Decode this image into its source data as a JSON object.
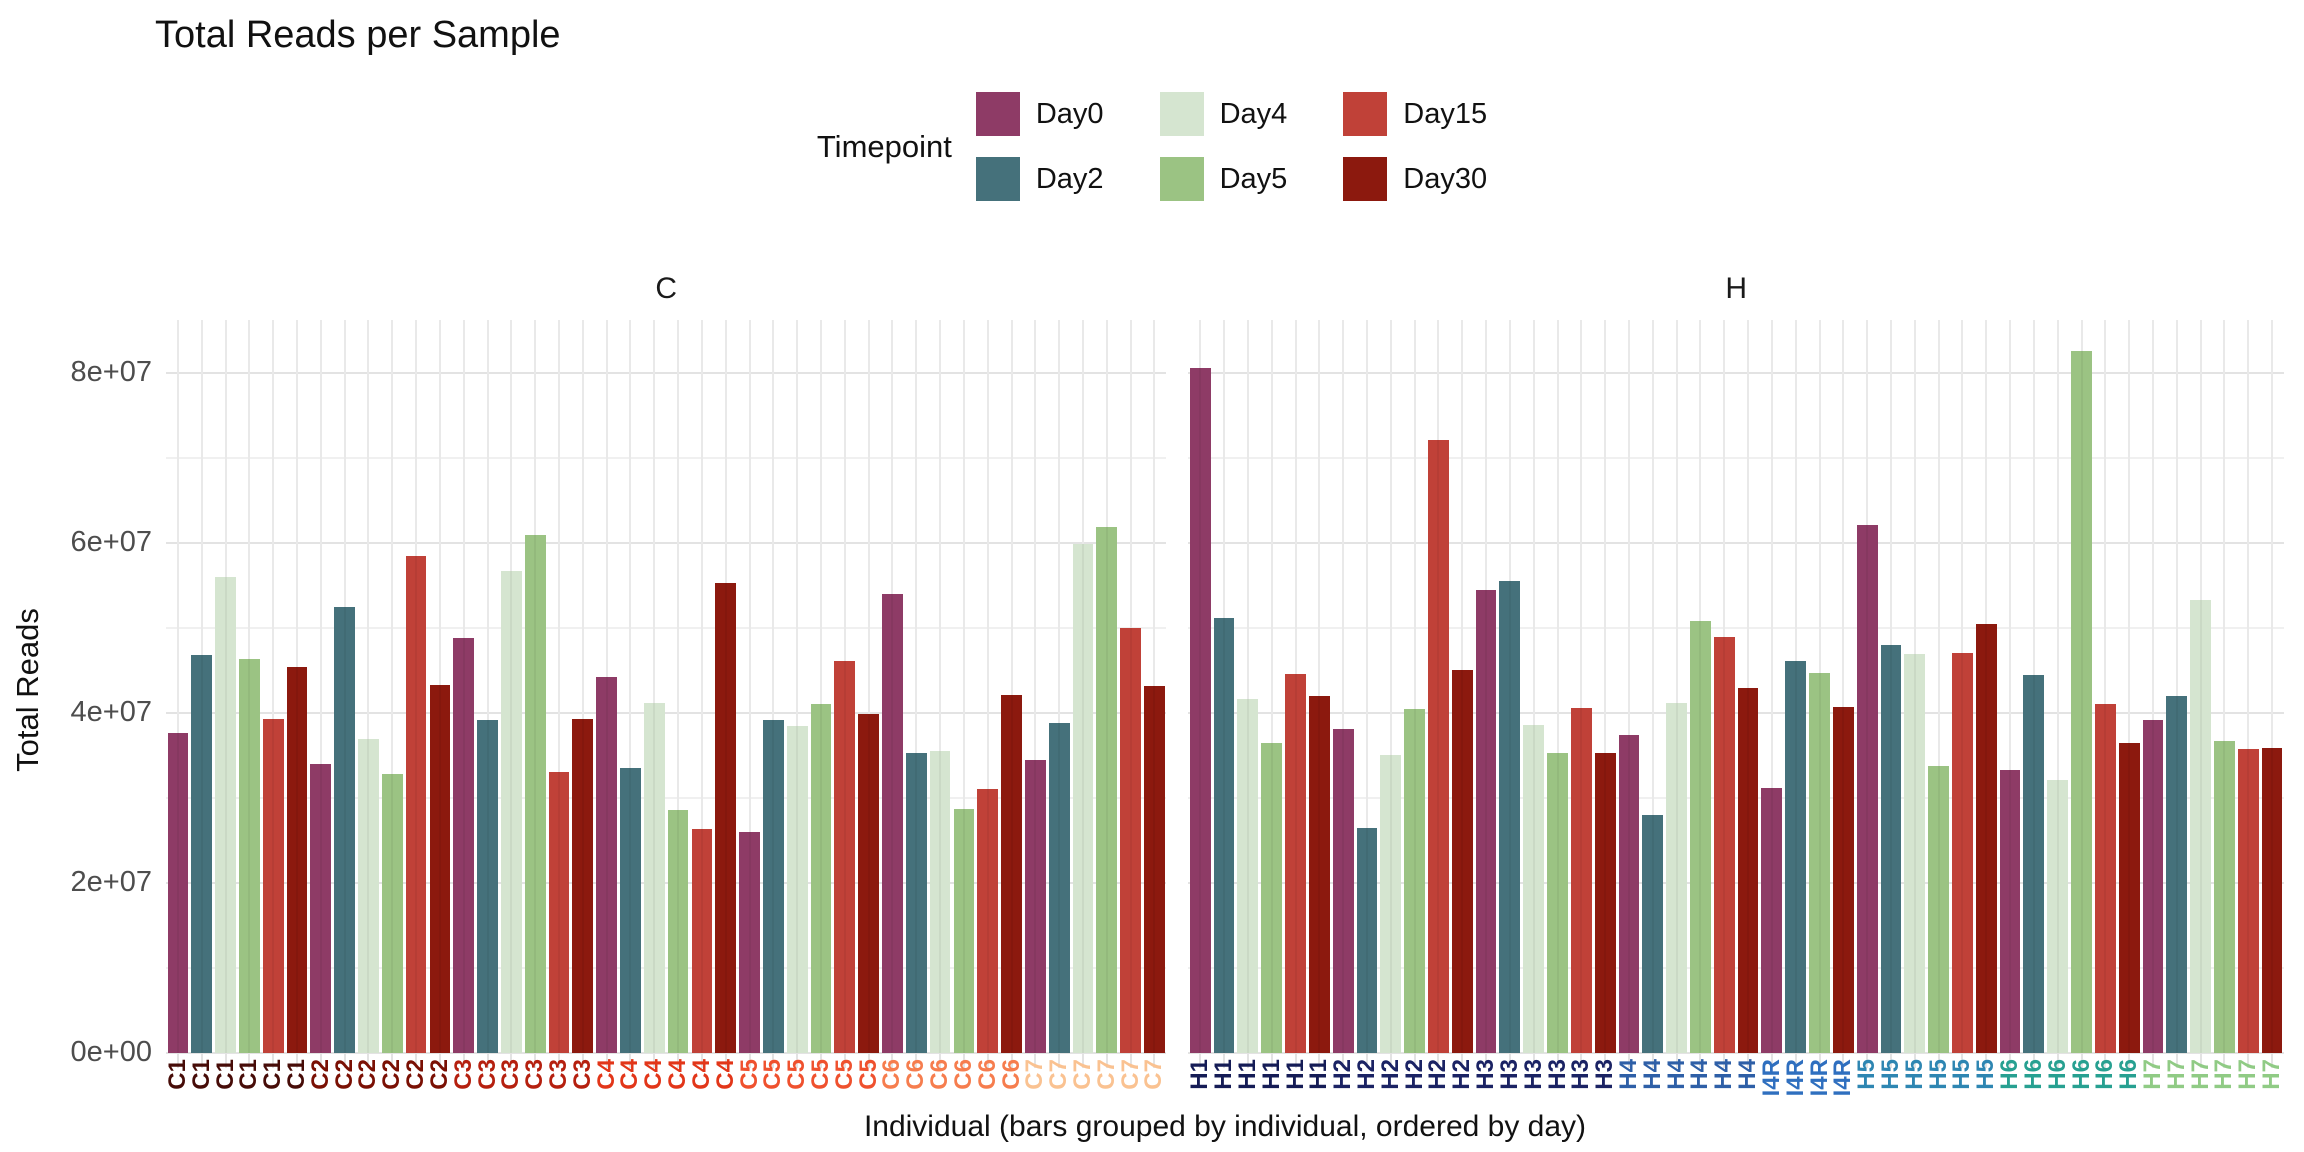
{
  "title": "Total Reads per Sample",
  "legend": {
    "title": "Timepoint",
    "items": [
      {
        "label": "Day0",
        "color": "#8E3B66"
      },
      {
        "label": "Day2",
        "color": "#45717B"
      },
      {
        "label": "Day4",
        "color": "#D5E5D0"
      },
      {
        "label": "Day5",
        "color": "#9BC383"
      },
      {
        "label": "Day15",
        "color": "#C04138"
      },
      {
        "label": "Day30",
        "color": "#8C190E"
      }
    ]
  },
  "chart_data": {
    "type": "bar",
    "title": "Total Reads per Sample",
    "xlabel": "Individual (bars grouped by individual, ordered by day)",
    "ylabel": "Total Reads",
    "ylim": [
      0,
      86200000
    ],
    "grid": true,
    "legend_position": "top-center",
    "legend_title": "Timepoint",
    "timepoints": [
      "Day0",
      "Day2",
      "Day4",
      "Day5",
      "Day15",
      "Day30"
    ],
    "series_colors": {
      "Day0": "#8E3B66",
      "Day2": "#45717B",
      "Day4": "#D5E5D0",
      "Day5": "#9BC383",
      "Day15": "#C04138",
      "Day30": "#8C190E"
    },
    "yticks": [
      {
        "value": 0,
        "label": "0e+00"
      },
      {
        "value": 20000000,
        "label": "2e+07"
      },
      {
        "value": 40000000,
        "label": "4e+07"
      },
      {
        "value": 60000000,
        "label": "6e+07"
      },
      {
        "value": 80000000,
        "label": "8e+07"
      }
    ],
    "yticks_minor": [
      10000000,
      30000000,
      50000000,
      70000000
    ],
    "facets": [
      {
        "label": "C",
        "groups": [
          {
            "individual": "C1",
            "label_color": "#470C08",
            "bars": [
              {
                "timepoint": "Day0",
                "value": 37600000
              },
              {
                "timepoint": "Day2",
                "value": 46800000
              },
              {
                "timepoint": "Day4",
                "value": 56000000
              },
              {
                "timepoint": "Day5",
                "value": 46300000
              },
              {
                "timepoint": "Day15",
                "value": 39300000
              },
              {
                "timepoint": "Day30",
                "value": 45400000
              }
            ]
          },
          {
            "individual": "C2",
            "label_color": "#7A1004",
            "bars": [
              {
                "timepoint": "Day0",
                "value": 34000000
              },
              {
                "timepoint": "Day2",
                "value": 52400000
              },
              {
                "timepoint": "Day4",
                "value": 36900000
              },
              {
                "timepoint": "Day5",
                "value": 32800000
              },
              {
                "timepoint": "Day15",
                "value": 58400000
              },
              {
                "timepoint": "Day30",
                "value": 43300000
              }
            ]
          },
          {
            "individual": "C3",
            "label_color": "#B5200F",
            "bars": [
              {
                "timepoint": "Day0",
                "value": 48800000
              },
              {
                "timepoint": "Day2",
                "value": 39200000
              },
              {
                "timepoint": "Day4",
                "value": 56700000
              },
              {
                "timepoint": "Day5",
                "value": 60900000
              },
              {
                "timepoint": "Day15",
                "value": 33100000
              },
              {
                "timepoint": "Day30",
                "value": 39300000
              }
            ]
          },
          {
            "individual": "C4",
            "label_color": "#E23619",
            "bars": [
              {
                "timepoint": "Day0",
                "value": 44200000
              },
              {
                "timepoint": "Day2",
                "value": 33500000
              },
              {
                "timepoint": "Day4",
                "value": 41200000
              },
              {
                "timepoint": "Day5",
                "value": 28600000
              },
              {
                "timepoint": "Day15",
                "value": 26400000
              },
              {
                "timepoint": "Day30",
                "value": 55300000
              }
            ]
          },
          {
            "individual": "C5",
            "label_color": "#EF512E",
            "bars": [
              {
                "timepoint": "Day0",
                "value": 26000000
              },
              {
                "timepoint": "Day2",
                "value": 39200000
              },
              {
                "timepoint": "Day4",
                "value": 38500000
              },
              {
                "timepoint": "Day5",
                "value": 41000000
              },
              {
                "timepoint": "Day15",
                "value": 46100000
              },
              {
                "timepoint": "Day30",
                "value": 39900000
              }
            ]
          },
          {
            "individual": "C6",
            "label_color": "#F67D4E",
            "bars": [
              {
                "timepoint": "Day0",
                "value": 54000000
              },
              {
                "timepoint": "Day2",
                "value": 35300000
              },
              {
                "timepoint": "Day4",
                "value": 35500000
              },
              {
                "timepoint": "Day5",
                "value": 28700000
              },
              {
                "timepoint": "Day15",
                "value": 31100000
              },
              {
                "timepoint": "Day30",
                "value": 42100000
              }
            ]
          },
          {
            "individual": "C7",
            "label_color": "#FAC291",
            "bars": [
              {
                "timepoint": "Day0",
                "value": 34500000
              },
              {
                "timepoint": "Day2",
                "value": 38800000
              },
              {
                "timepoint": "Day4",
                "value": 59900000
              },
              {
                "timepoint": "Day5",
                "value": 61900000
              },
              {
                "timepoint": "Day15",
                "value": 50000000
              },
              {
                "timepoint": "Day30",
                "value": 43200000
              }
            ]
          }
        ]
      },
      {
        "label": "H",
        "groups": [
          {
            "individual": "H1",
            "label_color": "#151C56",
            "bars": [
              {
                "timepoint": "Day0",
                "value": 80500000
              },
              {
                "timepoint": "Day2",
                "value": 51200000
              },
              {
                "timepoint": "Day4",
                "value": 41600000
              },
              {
                "timepoint": "Day5",
                "value": 36500000
              },
              {
                "timepoint": "Day15",
                "value": 44600000
              },
              {
                "timepoint": "Day30",
                "value": 42000000
              }
            ]
          },
          {
            "individual": "H2",
            "label_color": "#1B2364",
            "bars": [
              {
                "timepoint": "Day0",
                "value": 38100000
              },
              {
                "timepoint": "Day2",
                "value": 26500000
              },
              {
                "timepoint": "Day4",
                "value": 35100000
              },
              {
                "timepoint": "Day5",
                "value": 40400000
              },
              {
                "timepoint": "Day15",
                "value": 72100000
              },
              {
                "timepoint": "Day30",
                "value": 45000000
              }
            ]
          },
          {
            "individual": "H3",
            "label_color": "#1B2364",
            "bars": [
              {
                "timepoint": "Day0",
                "value": 54500000
              },
              {
                "timepoint": "Day2",
                "value": 55500000
              },
              {
                "timepoint": "Day4",
                "value": 38600000
              },
              {
                "timepoint": "Day5",
                "value": 35300000
              },
              {
                "timepoint": "Day15",
                "value": 40600000
              },
              {
                "timepoint": "Day30",
                "value": 35300000
              }
            ]
          },
          {
            "individual": "H4",
            "label_color": "#2E5FA7",
            "bars": [
              {
                "timepoint": "Day0",
                "value": 37400000
              },
              {
                "timepoint": "Day2",
                "value": 28000000
              },
              {
                "timepoint": "Day4",
                "value": 41200000
              },
              {
                "timepoint": "Day5",
                "value": 50800000
              },
              {
                "timepoint": "Day15",
                "value": 48900000
              },
              {
                "timepoint": "Day30",
                "value": 42900000
              }
            ]
          },
          {
            "individual": "I4R",
            "label_color": "#2F6FBF",
            "bars": [
              {
                "timepoint": "Day0",
                "value": 31200000
              },
              {
                "timepoint": "Day2",
                "value": 46100000
              },
              {
                "timepoint": "Day5",
                "value": 44700000
              },
              {
                "timepoint": "Day30",
                "value": 40700000
              }
            ]
          },
          {
            "individual": "H5",
            "label_color": "#2E86B2",
            "bars": [
              {
                "timepoint": "Day0",
                "value": 62100000
              },
              {
                "timepoint": "Day2",
                "value": 48000000
              },
              {
                "timepoint": "Day4",
                "value": 46900000
              },
              {
                "timepoint": "Day5",
                "value": 33700000
              },
              {
                "timepoint": "Day15",
                "value": 47000000
              },
              {
                "timepoint": "Day30",
                "value": 50400000
              }
            ]
          },
          {
            "individual": "H6",
            "label_color": "#27A091",
            "bars": [
              {
                "timepoint": "Day0",
                "value": 33300000
              },
              {
                "timepoint": "Day2",
                "value": 44400000
              },
              {
                "timepoint": "Day4",
                "value": 32100000
              },
              {
                "timepoint": "Day5",
                "value": 82500000
              },
              {
                "timepoint": "Day15",
                "value": 41000000
              },
              {
                "timepoint": "Day30",
                "value": 36400000
              }
            ]
          },
          {
            "individual": "H7",
            "label_color": "#90CB85",
            "bars": [
              {
                "timepoint": "Day0",
                "value": 39200000
              },
              {
                "timepoint": "Day2",
                "value": 42000000
              },
              {
                "timepoint": "Day4",
                "value": 53300000
              },
              {
                "timepoint": "Day5",
                "value": 36700000
              },
              {
                "timepoint": "Day15",
                "value": 35800000
              },
              {
                "timepoint": "Day30",
                "value": 35900000
              }
            ]
          }
        ]
      }
    ]
  }
}
